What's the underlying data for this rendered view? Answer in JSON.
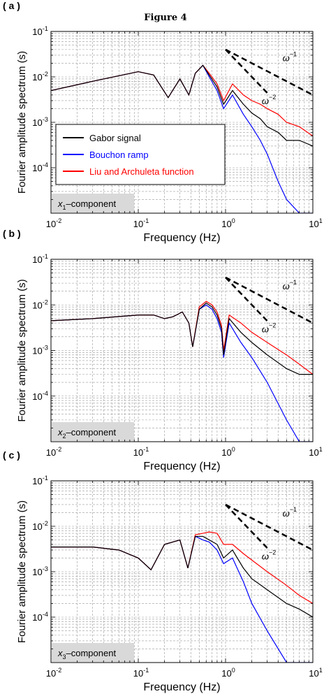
{
  "figure_title": "Figure 4",
  "chart_data": [
    {
      "type": "line",
      "panel_label": "( a )",
      "component_label": "x1–component",
      "xlabel": "Frequency (Hz)",
      "ylabel": "Fourier amplitude spectrum (s)",
      "x_scale": "log",
      "y_scale": "log",
      "xlim": [
        0.01,
        10
      ],
      "ylim": [
        1e-05,
        0.1
      ],
      "x_ticks": [
        "10-2",
        "10-1",
        "100",
        "101"
      ],
      "y_ticks": [
        "10-1",
        "10-2",
        "10-3",
        "10-4"
      ],
      "grid": true,
      "legend": {
        "placement": "left-middle",
        "entries": [
          "Gabor signal",
          "Bouchon ramp",
          "Liu and Archuleta function"
        ]
      },
      "slope_labels": [
        "ω−1",
        "ω−2"
      ],
      "series": [
        {
          "name": "Gabor signal",
          "color": "#000000",
          "x": [
            0.01,
            0.03,
            0.1,
            0.15,
            0.22,
            0.3,
            0.38,
            0.45,
            0.55,
            0.65,
            0.8,
            0.95,
            1.2,
            1.6,
            2.0,
            2.5,
            3.0,
            4.0,
            5.0,
            7.0,
            10.0
          ],
          "y": [
            0.005,
            0.008,
            0.013,
            0.011,
            0.0035,
            0.009,
            0.004,
            0.012,
            0.018,
            0.011,
            0.006,
            0.0025,
            0.005,
            0.0025,
            0.0016,
            0.0012,
            0.0008,
            0.0006,
            0.0004,
            0.0004,
            0.0003
          ]
        },
        {
          "name": "Bouchon ramp",
          "color": "#0000ff",
          "x": [
            0.01,
            0.03,
            0.1,
            0.15,
            0.22,
            0.3,
            0.38,
            0.45,
            0.55,
            0.65,
            0.8,
            0.95,
            1.2,
            1.6,
            2.0,
            2.5,
            3.0,
            4.0,
            5.0,
            7.0,
            10.0
          ],
          "y": [
            0.005,
            0.008,
            0.013,
            0.011,
            0.0035,
            0.009,
            0.004,
            0.012,
            0.018,
            0.01,
            0.005,
            0.002,
            0.004,
            0.0015,
            0.0008,
            0.0004,
            0.0002,
            5e-05,
            2e-05,
            1e-05,
            1e-05
          ]
        },
        {
          "name": "Liu and Archuleta function",
          "color": "#ff0000",
          "x": [
            0.01,
            0.03,
            0.1,
            0.15,
            0.22,
            0.3,
            0.38,
            0.45,
            0.55,
            0.65,
            0.8,
            0.95,
            1.2,
            1.6,
            2.0,
            2.5,
            3.0,
            4.0,
            5.0,
            7.0,
            10.0
          ],
          "y": [
            0.005,
            0.008,
            0.013,
            0.011,
            0.0035,
            0.009,
            0.004,
            0.012,
            0.018,
            0.012,
            0.007,
            0.003,
            0.007,
            0.004,
            0.003,
            0.0025,
            0.002,
            0.0015,
            0.001,
            0.0008,
            0.0005
          ]
        }
      ]
    },
    {
      "type": "line",
      "panel_label": "( b )",
      "component_label": "x2–component",
      "xlabel": "Frequency (Hz)",
      "ylabel": "Fourier amplitude spectrum (s)",
      "x_scale": "log",
      "y_scale": "log",
      "xlim": [
        0.01,
        10
      ],
      "ylim": [
        1e-05,
        0.1
      ],
      "x_ticks": [
        "10-2",
        "10-1",
        "100",
        "101"
      ],
      "y_ticks": [
        "10-1",
        "10-2",
        "10-3",
        "10-4"
      ],
      "grid": true,
      "slope_labels": [
        "ω−1",
        "ω−2"
      ],
      "series": [
        {
          "name": "Gabor signal",
          "color": "#000000",
          "x": [
            0.01,
            0.03,
            0.1,
            0.15,
            0.2,
            0.25,
            0.32,
            0.38,
            0.42,
            0.5,
            0.6,
            0.7,
            0.8,
            0.9,
            0.95,
            1.1,
            1.5,
            2.0,
            3.0,
            5.0,
            7.0,
            10.0
          ],
          "y": [
            0.0045,
            0.005,
            0.006,
            0.006,
            0.005,
            0.0055,
            0.007,
            0.004,
            0.0012,
            0.008,
            0.011,
            0.009,
            0.006,
            0.003,
            0.0008,
            0.005,
            0.0025,
            0.0015,
            0.0008,
            0.0004,
            0.0003,
            0.0003
          ]
        },
        {
          "name": "Bouchon ramp",
          "color": "#0000ff",
          "x": [
            0.01,
            0.03,
            0.1,
            0.15,
            0.2,
            0.25,
            0.32,
            0.38,
            0.42,
            0.5,
            0.6,
            0.7,
            0.8,
            0.9,
            0.95,
            1.1,
            1.5,
            2.0,
            3.0,
            5.0,
            7.0,
            10.0
          ],
          "y": [
            0.0045,
            0.005,
            0.006,
            0.006,
            0.005,
            0.0055,
            0.007,
            0.004,
            0.0012,
            0.008,
            0.01,
            0.008,
            0.005,
            0.0025,
            0.0007,
            0.004,
            0.0015,
            0.0007,
            0.0002,
            3e-05,
            1e-05,
            1e-05
          ]
        },
        {
          "name": "Liu and Archuleta function",
          "color": "#ff0000",
          "x": [
            0.01,
            0.03,
            0.1,
            0.15,
            0.2,
            0.25,
            0.32,
            0.38,
            0.42,
            0.5,
            0.6,
            0.7,
            0.8,
            0.9,
            0.95,
            1.1,
            1.5,
            2.0,
            3.0,
            5.0,
            7.0,
            10.0
          ],
          "y": [
            0.0045,
            0.005,
            0.006,
            0.006,
            0.005,
            0.0055,
            0.007,
            0.004,
            0.0012,
            0.009,
            0.012,
            0.01,
            0.007,
            0.0035,
            0.001,
            0.006,
            0.004,
            0.0025,
            0.0015,
            0.0008,
            0.0005,
            0.0003
          ]
        }
      ]
    },
    {
      "type": "line",
      "panel_label": "( c )",
      "component_label": "x3–component",
      "xlabel": "Frequency (Hz)",
      "ylabel": "Fourier amplitude spectrum (s)",
      "x_scale": "log",
      "y_scale": "log",
      "xlim": [
        0.01,
        10
      ],
      "ylim": [
        1e-05,
        0.1
      ],
      "x_ticks": [
        "10-2",
        "10-1",
        "100",
        "101"
      ],
      "y_ticks": [
        "10-1",
        "10-2",
        "10-3",
        "10-4"
      ],
      "grid": true,
      "slope_labels": [
        "ω−1",
        "ω−2"
      ],
      "series": [
        {
          "name": "Gabor signal",
          "color": "#000000",
          "x": [
            0.01,
            0.03,
            0.06,
            0.1,
            0.14,
            0.2,
            0.3,
            0.37,
            0.45,
            0.55,
            0.65,
            0.8,
            0.95,
            1.2,
            1.6,
            2.0,
            3.0,
            5.0,
            7.0,
            10.0
          ],
          "y": [
            0.0035,
            0.0035,
            0.003,
            0.002,
            0.0011,
            0.004,
            0.005,
            0.0012,
            0.006,
            0.006,
            0.005,
            0.004,
            0.002,
            0.003,
            0.0012,
            0.0007,
            0.0004,
            0.0002,
            0.00015,
            0.0001
          ]
        },
        {
          "name": "Bouchon ramp",
          "color": "#0000ff",
          "x": [
            0.01,
            0.03,
            0.06,
            0.1,
            0.14,
            0.2,
            0.3,
            0.37,
            0.45,
            0.55,
            0.65,
            0.8,
            0.95,
            1.2,
            1.6,
            2.0,
            3.0,
            5.0,
            7.0,
            10.0
          ],
          "y": [
            0.0035,
            0.0035,
            0.003,
            0.002,
            0.0011,
            0.004,
            0.005,
            0.0012,
            0.006,
            0.005,
            0.0045,
            0.003,
            0.0015,
            0.002,
            0.0006,
            0.0002,
            5e-05,
            1e-05,
            1e-05,
            1e-05
          ]
        },
        {
          "name": "Liu and Archuleta function",
          "color": "#ff0000",
          "x": [
            0.01,
            0.03,
            0.06,
            0.1,
            0.14,
            0.2,
            0.3,
            0.37,
            0.45,
            0.55,
            0.65,
            0.8,
            0.95,
            1.2,
            1.6,
            2.0,
            3.0,
            5.0,
            7.0,
            10.0
          ],
          "y": [
            0.0035,
            0.0035,
            0.003,
            0.002,
            0.0011,
            0.004,
            0.005,
            0.0012,
            0.0065,
            0.007,
            0.0075,
            0.007,
            0.004,
            0.004,
            0.0025,
            0.0018,
            0.001,
            0.0005,
            0.0003,
            0.0002
          ]
        }
      ]
    }
  ]
}
